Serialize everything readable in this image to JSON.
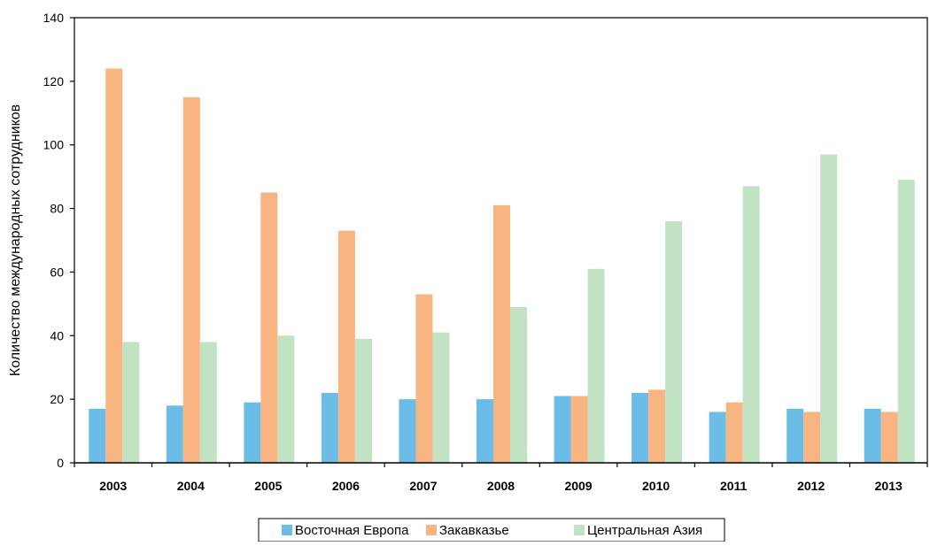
{
  "chart_data": {
    "type": "bar",
    "title": "",
    "xlabel": "",
    "ylabel": "Количество  международных  сотрудников",
    "ylim": [
      0,
      140
    ],
    "yticks": [
      0,
      20,
      40,
      60,
      80,
      100,
      120,
      140
    ],
    "grid": false,
    "legend_position": "bottom",
    "categories": [
      "2003",
      "2004",
      "2005",
      "2006",
      "2007",
      "2008",
      "2009",
      "2010",
      "2011",
      "2012",
      "2013"
    ],
    "series": [
      {
        "name": "Восточная Европа",
        "color": "#6bbde8",
        "values": [
          17,
          18,
          19,
          22,
          20,
          20,
          21,
          22,
          16,
          17,
          17
        ]
      },
      {
        "name": "Закавказье",
        "color": "#f8b581",
        "values": [
          124,
          115,
          85,
          73,
          53,
          81,
          21,
          23,
          19,
          16,
          16
        ]
      },
      {
        "name": "Центральная Азия",
        "color": "#c2e2c4",
        "values": [
          38,
          38,
          40,
          39,
          41,
          49,
          61,
          76,
          87,
          97,
          89
        ]
      }
    ]
  }
}
